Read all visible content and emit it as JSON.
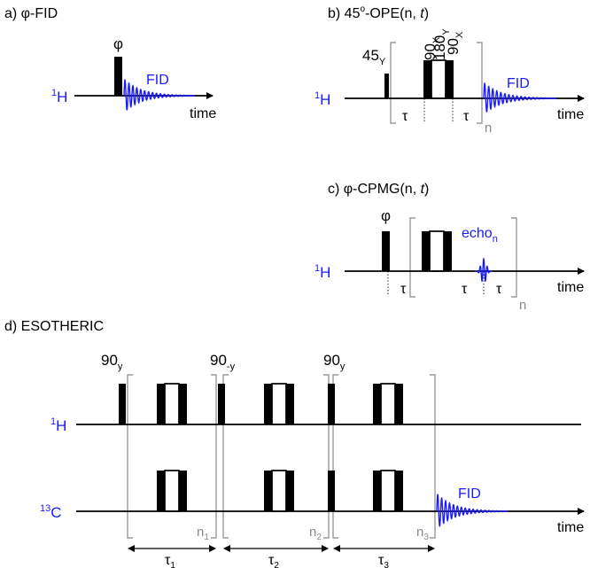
{
  "colors": {
    "blue": "#1a1aff",
    "black": "#000000",
    "gray": "#8a8a8a"
  },
  "panel_a": {
    "title": "a) φ-FID",
    "pulse_label": "φ",
    "channel_sup": "1",
    "channel": "H",
    "signal_label": "FID",
    "axis_label": "time"
  },
  "panel_b": {
    "title_main": "b) 45",
    "title_deg": "o",
    "title_rest": "-OPE(n, ",
    "title_t": "t",
    "title_close": ")",
    "p45_main": "45",
    "p45_sub": "Y",
    "p90a_main": "90",
    "p90a_sub": "X",
    "p180_main": "180",
    "p180_sub": "Y",
    "p90b_main": "90",
    "p90b_sub": "X",
    "channel_sup": "1",
    "channel": "H",
    "tau1": "τ",
    "tau2": "τ",
    "repeat": "n",
    "signal_label": "FID",
    "axis_label": "time"
  },
  "panel_c": {
    "title_main": "c) φ-CPMG(n, ",
    "title_t": "t",
    "title_close": ")",
    "pulse_label": "φ",
    "echo_main": "echo",
    "echo_sub": "n",
    "channel_sup": "1",
    "channel": "H",
    "tau1": "τ",
    "tau2": "τ",
    "tau3": "τ",
    "repeat": "n",
    "axis_label": "time"
  },
  "panel_d": {
    "title": "d) ESOTHERIC",
    "p1_main": "90",
    "p1_sub": "y",
    "p2_main": "90",
    "p2_sub": "-y",
    "p3_main": "90",
    "p3_sub": "y",
    "h_sup": "1",
    "h_label": "H",
    "c_sup": "13",
    "c_label": "C",
    "n1_main": "n",
    "n1_sub": "1",
    "n2_main": "n",
    "n2_sub": "2",
    "n3_main": "n",
    "n3_sub": "3",
    "tau1_main": "τ",
    "tau1_sub": "1",
    "tau2_main": "τ",
    "tau2_sub": "2",
    "tau3_main": "τ",
    "tau3_sub": "3",
    "signal_label": "FID",
    "axis_label": "time"
  }
}
